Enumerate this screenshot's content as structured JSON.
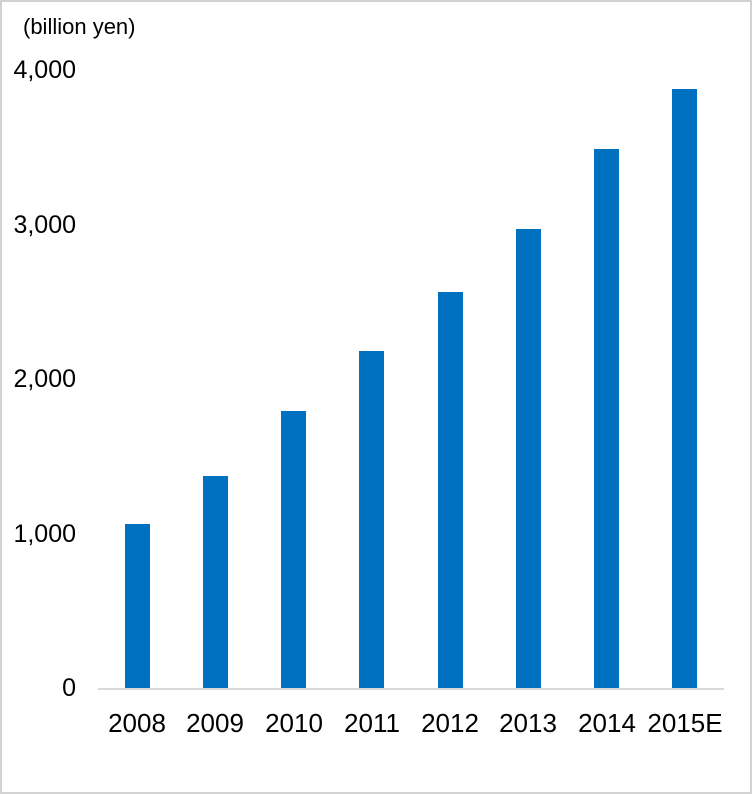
{
  "page": {
    "background": "#FFFFFF",
    "border_color": "#D2D2D2"
  },
  "chart_data": {
    "type": "bar",
    "title": "",
    "unit_label": "(billion yen)",
    "categories": [
      "2008",
      "2009",
      "2010",
      "2011",
      "2012",
      "2013",
      "2014",
      "2015E"
    ],
    "values": [
      1060,
      1370,
      1790,
      2180,
      2560,
      2970,
      3490,
      3880
    ],
    "xlabel": "",
    "ylabel": "(billion yen)",
    "ylim": [
      0,
      4000
    ],
    "yticks": [
      {
        "value": 0,
        "label": "0"
      },
      {
        "value": 1000,
        "label": "1,000"
      },
      {
        "value": 2000,
        "label": "2,000"
      },
      {
        "value": 3000,
        "label": "3,000"
      },
      {
        "value": 4000,
        "label": "4,000"
      }
    ],
    "bar_color": "#0070C0",
    "axis_line_color": "#D9D9D9",
    "text_color": "#000000",
    "grid": false,
    "legend_position": "none"
  }
}
